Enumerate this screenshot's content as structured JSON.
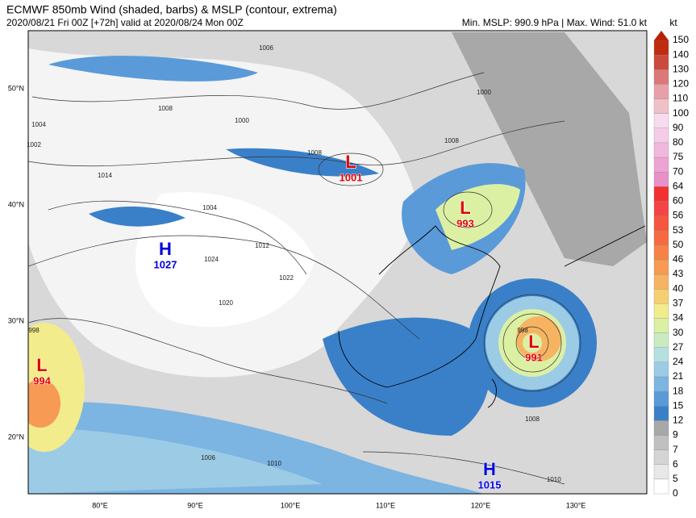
{
  "header": {
    "title": "ECMWF 850mb Wind (shaded, barbs) & MSLP (contour, extrema)",
    "subtitle": "2020/08/21 Fri 00Z [+72h] valid at 2020/08/24 Mon 00Z",
    "stats": "Min. MSLP: 990.9 hPa | Max. Wind: 51.0 kt"
  },
  "colorbar": {
    "unit": "kt",
    "levels": [
      {
        "label": "0",
        "color": "#ffffff"
      },
      {
        "label": "5",
        "color": "#e8e8e8"
      },
      {
        "label": "6",
        "color": "#d4d4d4"
      },
      {
        "label": "7",
        "color": "#c0c0c0"
      },
      {
        "label": "9",
        "color": "#a8a8a8"
      },
      {
        "label": "12",
        "color": "#3a80c8"
      },
      {
        "label": "15",
        "color": "#5a9ad8"
      },
      {
        "label": "18",
        "color": "#7cb4e2"
      },
      {
        "label": "21",
        "color": "#9ccbe6"
      },
      {
        "label": "24",
        "color": "#b4e0e0"
      },
      {
        "label": "27",
        "color": "#c8ecc0"
      },
      {
        "label": "30",
        "color": "#dcf0a4"
      },
      {
        "label": "34",
        "color": "#f2ec8c"
      },
      {
        "label": "37",
        "color": "#f6d070"
      },
      {
        "label": "40",
        "color": "#f6b462"
      },
      {
        "label": "43",
        "color": "#f69a54"
      },
      {
        "label": "46",
        "color": "#f68248"
      },
      {
        "label": "50",
        "color": "#f66a42"
      },
      {
        "label": "53",
        "color": "#f65640"
      },
      {
        "label": "56",
        "color": "#f44444"
      },
      {
        "label": "60",
        "color": "#f23030"
      },
      {
        "label": "64",
        "color": "#e890c8"
      },
      {
        "label": "70",
        "color": "#eca4d4"
      },
      {
        "label": "75",
        "color": "#f0b8dc"
      },
      {
        "label": "80",
        "color": "#f4cce6"
      },
      {
        "label": "90",
        "color": "#f6dcee"
      },
      {
        "label": "100",
        "color": "#f0c0c8"
      },
      {
        "label": "110",
        "color": "#e8a0a8"
      },
      {
        "label": "120",
        "color": "#dc7878"
      },
      {
        "label": "130",
        "color": "#cc4a3c"
      },
      {
        "label": "140",
        "color": "#c02c10"
      },
      {
        "label": "150",
        "color": "#b82000"
      }
    ]
  },
  "lat_labels": [
    "50°N",
    "40°N",
    "30°N",
    "20°N"
  ],
  "lon_labels": [
    "80°E",
    "90°E",
    "100°E",
    "110°E",
    "120°E",
    "130°E"
  ],
  "centers": [
    {
      "letter": "L",
      "value": "1001"
    },
    {
      "letter": "L",
      "value": "993"
    },
    {
      "letter": "L",
      "value": "991"
    },
    {
      "letter": "L",
      "value": "994"
    },
    {
      "letter": "H",
      "value": "1027"
    },
    {
      "letter": "H",
      "value": "1015"
    }
  ],
  "contour_labels": [
    "1006",
    "1008",
    "1004",
    "1002",
    "1008",
    "1014",
    "1012",
    "1024",
    "1022",
    "1020",
    "1000",
    "998",
    "1008",
    "1006",
    "1010",
    "1008",
    "1010",
    "1004",
    "1000",
    "998"
  ]
}
